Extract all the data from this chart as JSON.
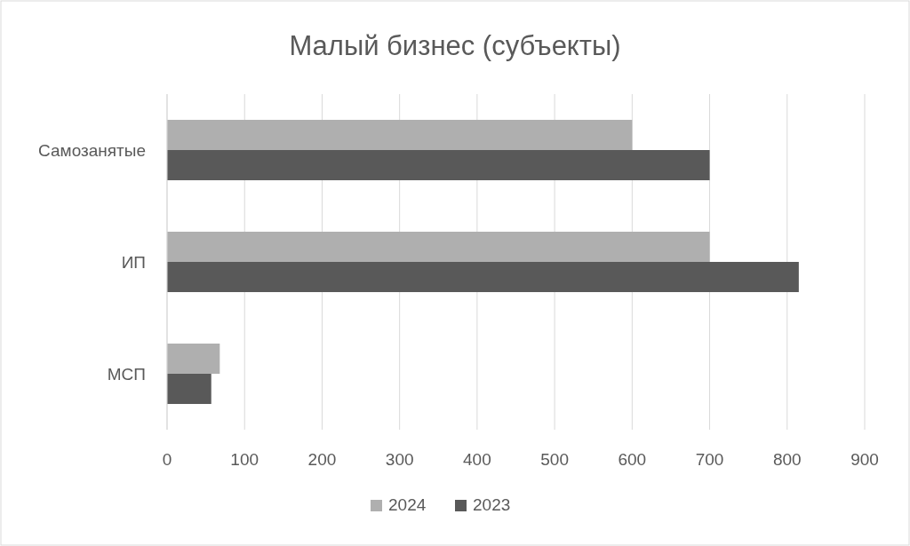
{
  "chart_data": {
    "type": "bar",
    "orientation": "horizontal",
    "title": "Малый бизнес (субъекты)",
    "categories": [
      "Самозанятые",
      "ИП",
      "МСП"
    ],
    "series": [
      {
        "name": "2024",
        "color": "#afafaf",
        "values": [
          600,
          700,
          68
        ]
      },
      {
        "name": "2023",
        "color": "#595959",
        "values": [
          700,
          815,
          57
        ]
      }
    ],
    "xlim": [
      0,
      900
    ],
    "xticks": [
      0,
      100,
      200,
      300,
      400,
      500,
      600,
      700,
      800,
      900
    ],
    "grid": "x",
    "legend": "bottom"
  }
}
